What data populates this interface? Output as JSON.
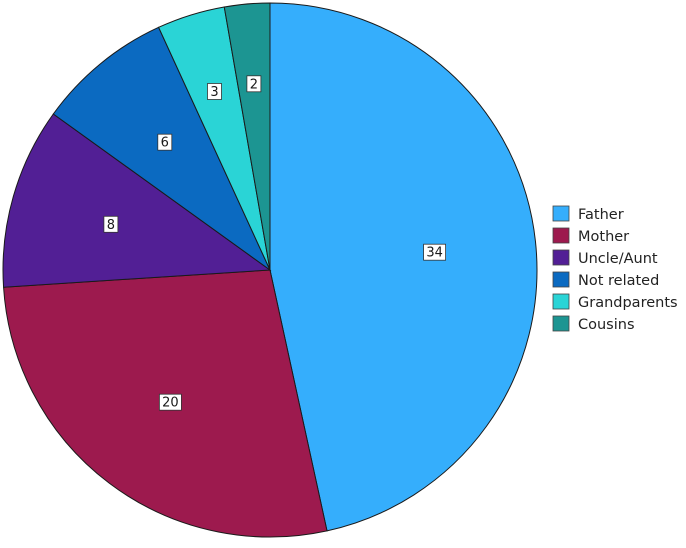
{
  "chart_data": {
    "type": "pie",
    "title": "",
    "legend_position": "right",
    "start": "top",
    "direction": "clockwise",
    "slices": [
      {
        "label": "Father",
        "value": 34,
        "color": "#35aefc"
      },
      {
        "label": "Mother",
        "value": 20,
        "color": "#9d1a4e"
      },
      {
        "label": "Uncle/Aunt",
        "value": 8,
        "color": "#521f95"
      },
      {
        "label": "Not related",
        "value": 6,
        "color": "#0b6ac1"
      },
      {
        "label": "Grandparents",
        "value": 3,
        "color": "#2ad4d6"
      },
      {
        "label": "Cousins",
        "value": 2,
        "color": "#1c9592"
      }
    ]
  }
}
